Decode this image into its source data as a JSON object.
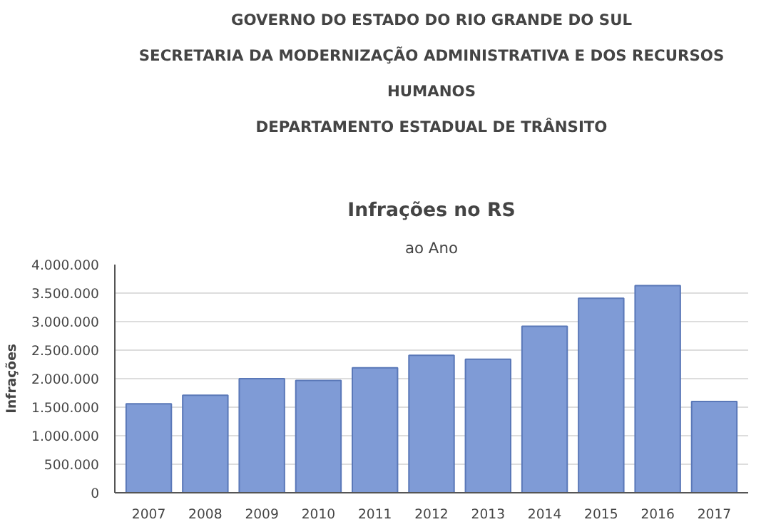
{
  "chart_data": {
    "type": "bar",
    "title": "Infrações no RS",
    "subtitle": "ao Ano",
    "ylabel": "Infrações",
    "annotations": [
      "GOVERNO DO ESTADO DO RIO GRANDE DO SUL",
      "SECRETARIA DA MODERNIZAÇÃO ADMINISTRATIVA E DOS RECURSOS",
      "HUMANOS",
      "DEPARTAMENTO ESTADUAL DE TRÂNSITO"
    ],
    "categories": [
      "2007",
      "2008",
      "2009",
      "2010",
      "2011",
      "2012",
      "2013",
      "2014",
      "2015",
      "2016",
      "2017"
    ],
    "values": [
      1560000,
      1710000,
      2000000,
      1970000,
      2190000,
      2410000,
      2340000,
      2920000,
      3410000,
      3630000,
      1600000
    ],
    "color": "#7f9bd6",
    "ylim": [
      0,
      4000000
    ],
    "yticks": [
      {
        "value": 0,
        "label": "0"
      },
      {
        "value": 500000,
        "label": "500.000"
      },
      {
        "value": 1000000,
        "label": "1.000.000"
      },
      {
        "value": 1500000,
        "label": "1.500.000"
      },
      {
        "value": 2000000,
        "label": "2.000.000"
      },
      {
        "value": 2500000,
        "label": "2.500.000"
      },
      {
        "value": 3000000,
        "label": "3.000.000"
      },
      {
        "value": 3500000,
        "label": "3.500.000"
      },
      {
        "value": 4000000,
        "label": "4.000.000"
      }
    ],
    "grid": "y"
  }
}
